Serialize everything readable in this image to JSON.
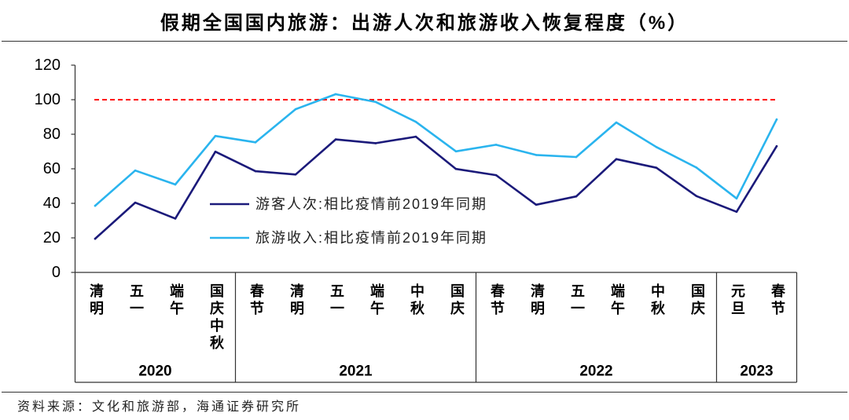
{
  "source": "资料来源：文化和旅游部，海通证券研究所",
  "chart_data": {
    "type": "line",
    "title": "假期全国国内旅游：出游人次和旅游收入恢复程度（%）",
    "categories": [
      "清明",
      "五一",
      "端午",
      "国庆中秋",
      "春节",
      "清明",
      "五一",
      "端午",
      "中秋",
      "国庆",
      "春节",
      "清明",
      "五一",
      "端午",
      "中秋",
      "国庆",
      "元旦",
      "春节"
    ],
    "category_groups": [
      {
        "label": "2020",
        "span": 4
      },
      {
        "label": "2021",
        "span": 6
      },
      {
        "label": "2022",
        "span": 6
      },
      {
        "label": "2023",
        "span": 2
      }
    ],
    "series": [
      {
        "name": "游客人次:相比疫情前2019年同期",
        "color": "#1B1A7A",
        "values": [
          19.5,
          40.4,
          31.2,
          69.9,
          58.6,
          56.7,
          77.0,
          74.8,
          78.6,
          59.9,
          56.3,
          39.2,
          44.0,
          65.6,
          60.6,
          44.2,
          35.1,
          73.1
        ]
      },
      {
        "name": "旅游收入:相比疫情前2019年同期",
        "color": "#2AB4EE",
        "values": [
          38.6,
          59.0,
          50.9,
          79.0,
          75.3,
          94.5,
          103.2,
          98.7,
          87.2,
          70.1,
          73.9,
          68.0,
          66.8,
          86.8,
          72.6,
          60.7,
          42.8,
          88.6
        ]
      }
    ],
    "reference_line": {
      "value": 100,
      "color": "#FF0000",
      "style": "dashed"
    },
    "ylim": [
      0,
      120
    ],
    "y_ticks": [
      "0",
      "20",
      "40",
      "60",
      "80",
      "100",
      "120"
    ],
    "grid": false,
    "legend_position": "center-left"
  }
}
